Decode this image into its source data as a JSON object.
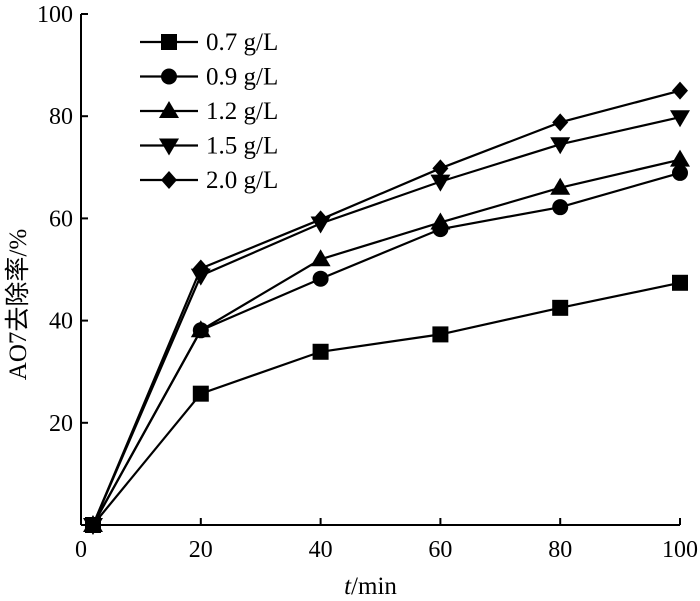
{
  "chart_data": {
    "type": "line",
    "title": "",
    "xlabel": "",
    "xlabel_italic": "t",
    "xlabel_rest": "/min",
    "ylabel": "AO7去除率/%",
    "xlim": [
      0,
      100
    ],
    "ylim": [
      0,
      100
    ],
    "xticks": [
      0,
      20,
      40,
      60,
      80,
      100
    ],
    "yticks": [
      20,
      40,
      60,
      80,
      100
    ],
    "x_tick_labels": [
      "0",
      "20",
      "40",
      "60",
      "80",
      "100"
    ],
    "y_tick_labels": [
      "20",
      "40",
      "60",
      "80",
      "100"
    ],
    "grid": false,
    "legend_position": "top-left",
    "x": [
      2,
      20,
      40,
      60,
      80,
      100
    ],
    "series": [
      {
        "name": "0.7 g/L",
        "marker": "square",
        "values": [
          0,
          25.7,
          33.9,
          37.3,
          42.5,
          47.4
        ]
      },
      {
        "name": "0.9 g/L",
        "marker": "circle",
        "values": [
          0,
          38.1,
          48.2,
          57.9,
          62.2,
          68.9
        ]
      },
      {
        "name": "1.2 g/L",
        "marker": "triangle-up",
        "values": [
          0,
          38.1,
          52.0,
          59.2,
          66.0,
          71.5
        ]
      },
      {
        "name": "1.5 g/L",
        "marker": "triangle-down",
        "values": [
          0,
          48.8,
          59.0,
          67.2,
          74.5,
          79.8
        ]
      },
      {
        "name": "2.0 g/L",
        "marker": "diamond",
        "values": [
          0,
          50.2,
          59.8,
          69.8,
          78.8,
          85.0
        ]
      }
    ]
  }
}
